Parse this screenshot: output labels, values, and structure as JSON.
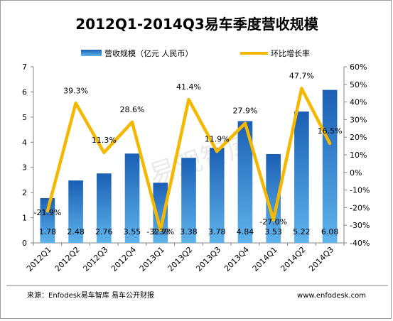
{
  "chart_data": {
    "type": "bar",
    "title": "2012Q1-2014Q3易车季度营收规模",
    "categories": [
      "2012Q1",
      "2012Q2",
      "2012Q3",
      "2012Q4",
      "2013Q1",
      "2013Q2",
      "2013Q3",
      "2013Q4",
      "2014Q1",
      "2014Q2",
      "2014Q3"
    ],
    "series": [
      {
        "name": "营收规模（亿元 人民币）",
        "type": "bar",
        "axis": "left",
        "values": [
          1.78,
          2.48,
          2.76,
          3.55,
          2.39,
          3.38,
          3.78,
          4.84,
          3.53,
          5.22,
          6.08
        ],
        "labels": [
          "1.78",
          "2.48",
          "2.76",
          "3.55",
          "2.39",
          "3.38",
          "3.78",
          "4.84",
          "3.53",
          "5.22",
          "6.08"
        ],
        "color": "#1f6fbf"
      },
      {
        "name": "环比增长率",
        "type": "line",
        "axis": "right",
        "values": [
          -21.9,
          39.3,
          11.3,
          28.6,
          -32.7,
          41.4,
          11.9,
          27.9,
          -27.0,
          47.7,
          16.5
        ],
        "labels": [
          "-21.9%",
          "39.3%",
          "11.3%",
          "28.6%",
          "-32.7%",
          "41.4%",
          "11.9%",
          "27.9%",
          "-27.0%",
          "47.7%",
          "16.5%"
        ],
        "color": "#f5b800"
      }
    ],
    "y_left": {
      "lim": [
        0,
        7
      ],
      "ticks": [
        "0",
        "1",
        "2",
        "3",
        "4",
        "5",
        "6",
        "7"
      ]
    },
    "y_right": {
      "lim": [
        -40,
        60
      ],
      "ticks": [
        "-40%",
        "-30%",
        "-20%",
        "-10%",
        "0%",
        "10%",
        "20%",
        "30%",
        "40%",
        "50%",
        "60%"
      ]
    },
    "grid": false,
    "legend": "top"
  },
  "footer": {
    "source": "来源：Enfodesk易车智库 易车公开财报",
    "site": "www.enfodesk.com"
  },
  "watermark": "易观智库"
}
